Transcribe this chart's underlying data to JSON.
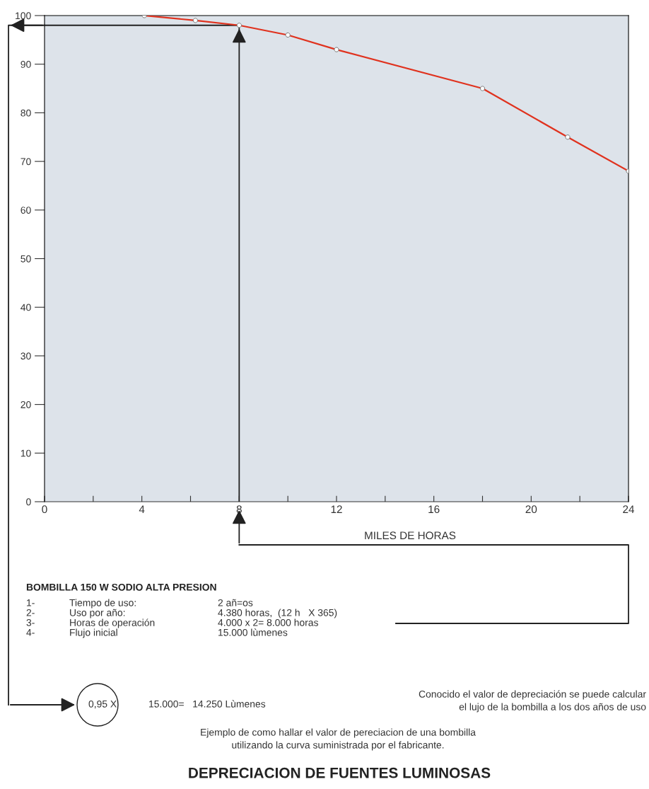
{
  "chart_data": {
    "type": "line",
    "title": "DEPRECIACION DE FUENTES LUMINOSAS",
    "xlabel": "MILES DE HORAS",
    "x": [
      4.1,
      6.2,
      8,
      10,
      12,
      18,
      21.5,
      24
    ],
    "series": [
      {
        "color": "#e0321e",
        "values": [
          100,
          99,
          98,
          96,
          93,
          85,
          75,
          68
        ]
      }
    ],
    "ref_lines": [
      {
        "axis": "x",
        "value": 8,
        "color": "#222222"
      },
      {
        "axis": "y",
        "value": 98,
        "color": "#222222"
      }
    ],
    "marker": "circle",
    "line_style": "solid",
    "grid": false,
    "legend": false,
    "xlim": [
      0,
      24
    ],
    "ylim": [
      0,
      100
    ],
    "xticks": [
      0,
      {
        "value": 2,
        "label": null
      },
      4,
      {
        "value": 6,
        "label": null
      },
      8,
      {
        "value": 10,
        "label": null
      },
      12,
      {
        "value": 14,
        "label": null
      },
      16,
      {
        "value": 18,
        "label": null
      },
      20,
      {
        "value": 22,
        "label": null
      },
      24
    ],
    "yticks": [
      0,
      10,
      20,
      30,
      40,
      50,
      60,
      70,
      80,
      90,
      100
    ],
    "annotations": [
      "BOMBILLA 150 W SODIO ALTA PRESION",
      "1-",
      "Tiempo de uso:",
      "2 añ=os",
      "2-",
      "Uso por año:",
      "4.380 horas,  (12 h   X 365)",
      "3-",
      "Horas de operación",
      "4.000 x 2= 8.000 horas",
      "4-",
      "Flujo inicial",
      "15.000 lùmenes",
      "0,95 X",
      "15.000=   14.250 Lùmenes",
      "Conocido el valor de depreciación se puede calcular\nel lujo de la bombilla a los dos años de uso",
      "Ejemplo de como hallar el valor de pereciacion de una bombilla\nutilizando la curva suministrada por el fabricante."
    ]
  }
}
